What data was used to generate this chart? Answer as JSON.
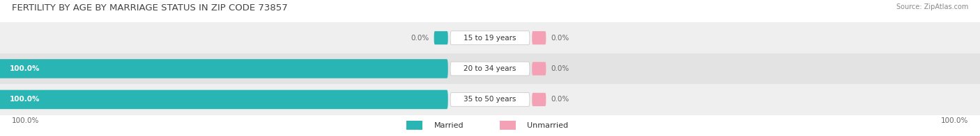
{
  "title": "FERTILITY BY AGE BY MARRIAGE STATUS IN ZIP CODE 73857",
  "source": "Source: ZipAtlas.com",
  "rows": [
    {
      "label": "15 to 19 years",
      "married": 0.0,
      "unmarried": 0.0
    },
    {
      "label": "20 to 34 years",
      "married": 100.0,
      "unmarried": 0.0
    },
    {
      "label": "35 to 50 years",
      "married": 100.0,
      "unmarried": 0.0
    }
  ],
  "married_color": "#2ab5b5",
  "unmarried_color": "#f4a0b5",
  "row_bg_colors": [
    "#efefef",
    "#e3e3e3",
    "#efefef"
  ],
  "title_color": "#444444",
  "source_color": "#888888",
  "legend_married": "Married",
  "legend_unmarried": "Unmarried",
  "x_left_label": "100.0%",
  "x_right_label": "100.0%",
  "title_fontsize": 9.5,
  "label_fontsize": 7.5,
  "value_fontsize": 7.5,
  "legend_fontsize": 8,
  "figsize": [
    14.06,
    1.96
  ],
  "dpi": 100
}
